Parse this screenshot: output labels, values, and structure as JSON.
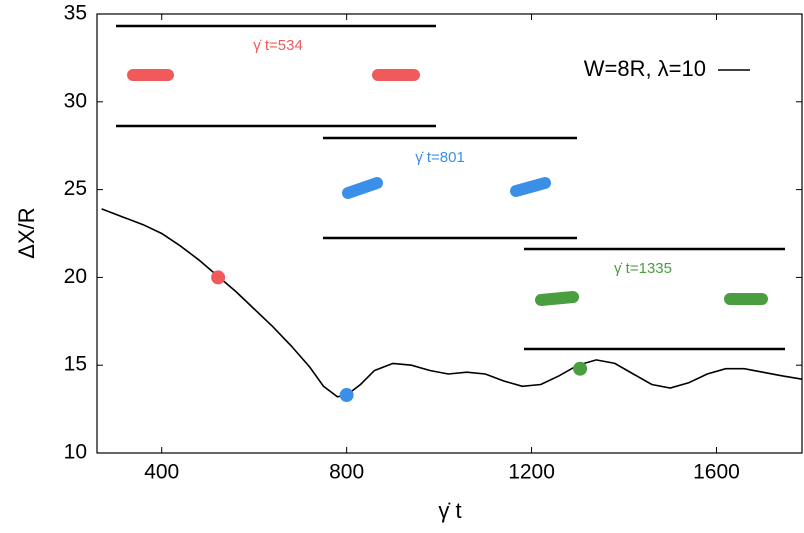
{
  "chart_data": {
    "type": "line",
    "xlabel": "γ̇ t",
    "ylabel": "ΔX/R",
    "xlim": [
      260,
      1785
    ],
    "ylim": [
      10,
      35
    ],
    "xticks": [
      400,
      800,
      1200,
      1600
    ],
    "yticks": [
      10,
      15,
      20,
      25,
      30,
      35
    ],
    "series": [
      {
        "name": "W=8R, λ=10",
        "color": "#000000",
        "x": [
          270,
          320,
          360,
          400,
          440,
          480,
          520,
          560,
          600,
          640,
          680,
          720,
          750,
          780,
          800,
          830,
          860,
          900,
          940,
          980,
          1020,
          1060,
          1100,
          1140,
          1180,
          1220,
          1260,
          1300,
          1340,
          1380,
          1420,
          1460,
          1500,
          1540,
          1580,
          1620,
          1660,
          1700,
          1740,
          1785
        ],
        "values": [
          23.9,
          23.4,
          23.0,
          22.5,
          21.8,
          21.0,
          20.1,
          19.2,
          18.2,
          17.2,
          16.1,
          14.9,
          13.8,
          13.2,
          13.3,
          13.9,
          14.7,
          15.1,
          15.0,
          14.7,
          14.5,
          14.6,
          14.5,
          14.1,
          13.8,
          13.9,
          14.4,
          15.0,
          15.3,
          15.1,
          14.5,
          13.9,
          13.7,
          14.0,
          14.5,
          14.8,
          14.8,
          14.6,
          14.4,
          14.2
        ]
      }
    ],
    "snapshots": [
      {
        "label": "γ̇ t=534",
        "color": "#f05a5a",
        "x": 522,
        "y": 20.0
      },
      {
        "label": "γ̇ t=801",
        "color": "#3b8fe8",
        "x": 800,
        "y": 13.3
      },
      {
        "label": "γ̇ t=1335",
        "color": "#4a9e3f",
        "x": 1305,
        "y": 14.8
      }
    ],
    "legend": "upper right"
  }
}
